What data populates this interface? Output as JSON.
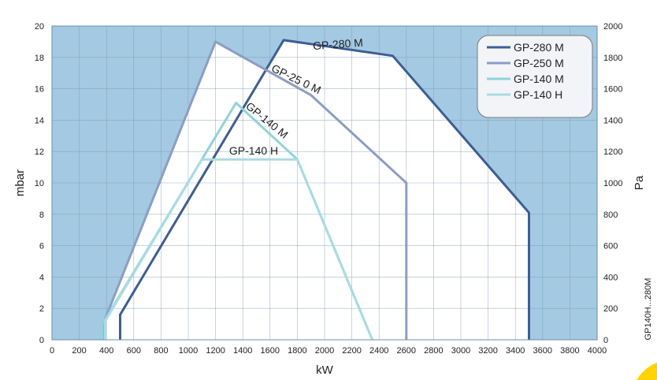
{
  "chart_data": {
    "type": "line",
    "xlabel": "kW",
    "ylabel": "mbar",
    "y2label": "Pa",
    "xlim": [
      0,
      4000
    ],
    "ylim": [
      0,
      20
    ],
    "y2lim": [
      0,
      2000
    ],
    "xticks": [
      0,
      200,
      400,
      600,
      800,
      1000,
      1200,
      1400,
      1600,
      1800,
      2000,
      2200,
      2400,
      2600,
      2800,
      3000,
      3200,
      3400,
      3600,
      3800,
      4000
    ],
    "yticks": [
      0,
      2,
      4,
      6,
      8,
      10,
      12,
      14,
      16,
      18,
      20
    ],
    "y2ticks": [
      0,
      200,
      400,
      600,
      800,
      1000,
      1200,
      1400,
      1600,
      1800,
      2000
    ],
    "grid": true,
    "legend_position": "top-right",
    "side_label": "GP140H...280M",
    "series": [
      {
        "name": "GP-280 M",
        "color": "#3d5e94",
        "label": "GP-280 M",
        "x": [
          500,
          500,
          1700,
          2500,
          3500,
          3500
        ],
        "y": [
          0,
          1.6,
          19.1,
          18.1,
          8.1,
          0
        ],
        "label_at": [
          2100,
          18.6
        ],
        "label_angle": -4
      },
      {
        "name": "GP-250 M",
        "color": "#8b9dc6",
        "label": "GP-25 0 M",
        "x": [
          380,
          380,
          1200,
          1900,
          2600,
          2600
        ],
        "y": [
          0,
          1.1,
          19.0,
          15.6,
          10.0,
          0
        ],
        "label_at": [
          1780,
          16.4
        ],
        "label_angle": 26
      },
      {
        "name": "GP-140 M",
        "color": "#8fd3dc",
        "label": "GP-140 M",
        "x": [
          370,
          370,
          1350,
          1800,
          2350
        ],
        "y": [
          0,
          1.0,
          15.1,
          11.5,
          0
        ],
        "label_at": [
          1560,
          13.8
        ],
        "label_angle": 39
      },
      {
        "name": "GP-140 H",
        "color": "#a8dce4",
        "label": "GP-140 H",
        "x": [
          390,
          390,
          1100,
          1800,
          2350
        ],
        "y": [
          0,
          1.2,
          11.5,
          11.5,
          0
        ],
        "label_at": [
          1480,
          11.8
        ],
        "label_angle": 0
      }
    ]
  }
}
